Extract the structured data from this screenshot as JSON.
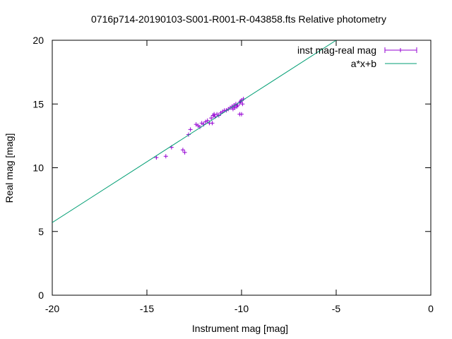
{
  "chart_data": {
    "type": "scatter",
    "title": "0716p714-20190103-S001-R001-R-043858.fts Relative photometry",
    "xlabel": "Instrument mag [mag]",
    "ylabel": "Real mag [mag]",
    "xlim": [
      -20,
      0
    ],
    "ylim": [
      0,
      20
    ],
    "x_ticks": [
      -20,
      -15,
      -10,
      -5,
      0
    ],
    "y_ticks": [
      0,
      5,
      10,
      15,
      20
    ],
    "x_tick_labels": [
      "-20",
      "-15",
      "-10",
      "-5",
      "0"
    ],
    "y_tick_labels": [
      "0",
      "5",
      "10",
      "15",
      "20"
    ],
    "grid": false,
    "legend_position": "top-right",
    "series": [
      {
        "name": "inst mag-real mag",
        "kind": "points",
        "color": "#9400d3",
        "points": [
          [
            -14.5,
            10.8
          ],
          [
            -14.0,
            10.9
          ],
          [
            -13.7,
            11.6
          ],
          [
            -13.1,
            11.4
          ],
          [
            -13.0,
            11.2
          ],
          [
            -12.8,
            12.6
          ],
          [
            -12.7,
            13.0
          ],
          [
            -12.4,
            13.4
          ],
          [
            -12.3,
            13.3
          ],
          [
            -12.2,
            13.2
          ],
          [
            -12.1,
            13.5
          ],
          [
            -12.0,
            13.4
          ],
          [
            -11.9,
            13.6
          ],
          [
            -11.8,
            13.7
          ],
          [
            -11.7,
            13.5
          ],
          [
            -11.6,
            13.9
          ],
          [
            -11.55,
            13.5
          ],
          [
            -11.5,
            14.1
          ],
          [
            -11.45,
            14.2
          ],
          [
            -11.4,
            14.0
          ],
          [
            -11.3,
            14.2
          ],
          [
            -11.2,
            14.1
          ],
          [
            -11.1,
            14.3
          ],
          [
            -11.0,
            14.4
          ],
          [
            -10.9,
            14.5
          ],
          [
            -10.8,
            14.5
          ],
          [
            -10.7,
            14.6
          ],
          [
            -10.6,
            14.7
          ],
          [
            -10.5,
            14.8
          ],
          [
            -10.45,
            14.6
          ],
          [
            -10.4,
            14.9
          ],
          [
            -10.35,
            14.7
          ],
          [
            -10.3,
            15.0
          ],
          [
            -10.25,
            14.8
          ],
          [
            -10.2,
            14.9
          ],
          [
            -10.1,
            15.1
          ],
          [
            -10.05,
            15.2
          ],
          [
            -10.0,
            15.3
          ],
          [
            -9.95,
            15.0
          ],
          [
            -9.9,
            15.4
          ],
          [
            -10.1,
            14.2
          ],
          [
            -10.0,
            14.2
          ]
        ]
      },
      {
        "name": "a*x+b",
        "kind": "line",
        "color": "#009e73",
        "x": [
          -20,
          -5
        ],
        "y": [
          5.7,
          20
        ]
      }
    ]
  }
}
